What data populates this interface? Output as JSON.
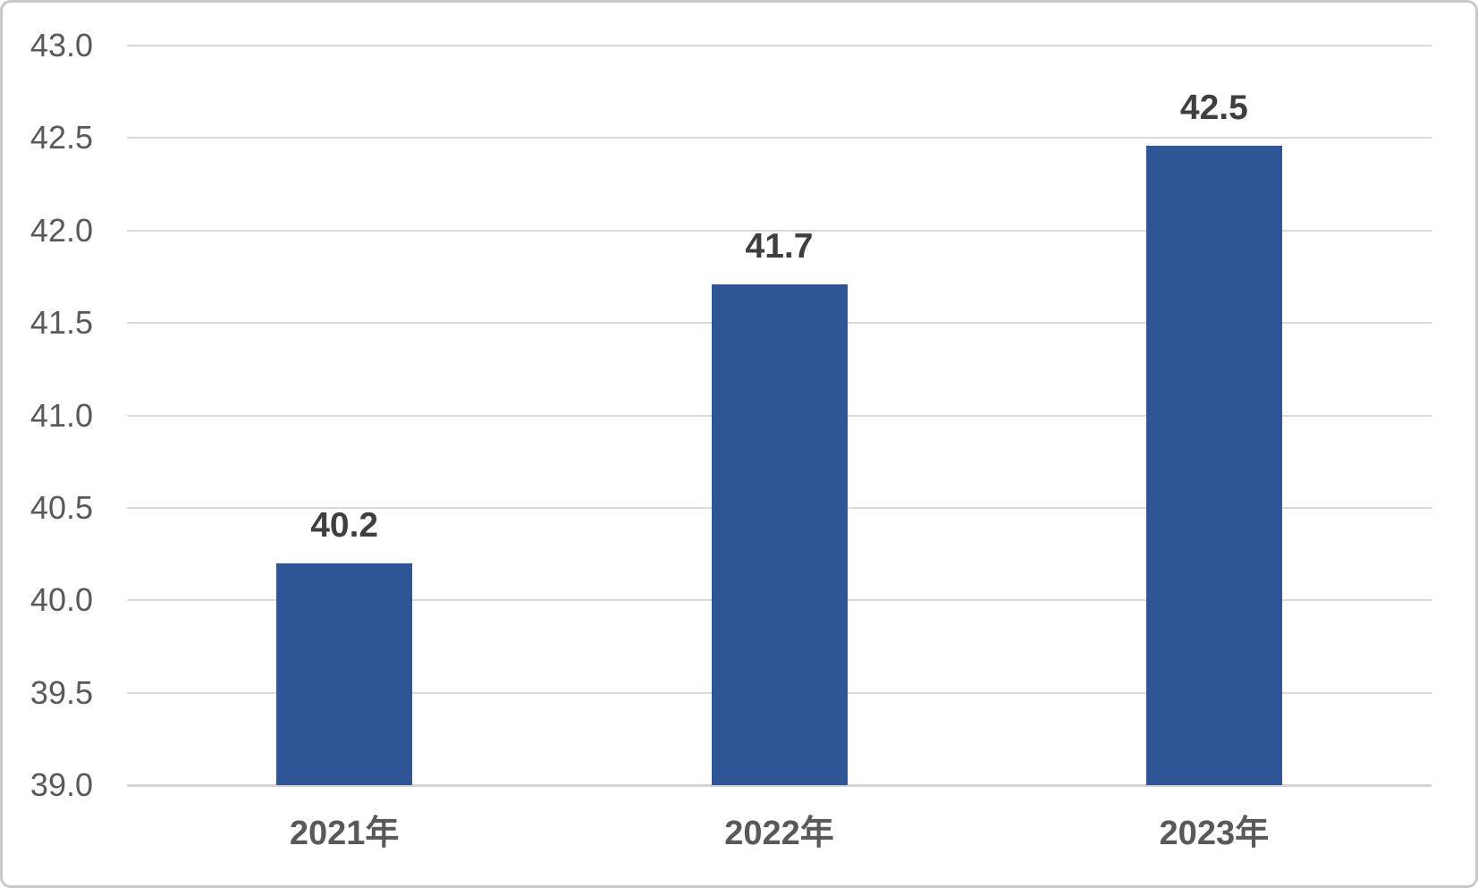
{
  "chart_data": {
    "type": "bar",
    "categories": [
      "2021年",
      "2022年",
      "2023年"
    ],
    "values": [
      40.2,
      41.7,
      42.5
    ],
    "data_labels": [
      "40.2",
      "41.7",
      "42.5"
    ],
    "bar_tops_axis_units": [
      40.2,
      41.71,
      42.46
    ],
    "title": "",
    "xlabel": "",
    "ylabel": "",
    "ylim": [
      39.0,
      43.0
    ],
    "y_tick_step": 0.5,
    "y_ticks": [
      "43.0",
      "42.5",
      "42.0",
      "41.5",
      "41.0",
      "40.5",
      "40.0",
      "39.5",
      "39.0"
    ],
    "grid": "horizontal",
    "legend": "none",
    "colors": {
      "bar": "#2F5596",
      "gridline": "#D9D9D9",
      "axis_line": "#D4D4D4",
      "y_tick_label": "#595959",
      "x_tick_label": "#595959",
      "data_label": "#3F3F3F",
      "frame_border": "#C9C9C9",
      "background": "#FFFFFF"
    }
  }
}
